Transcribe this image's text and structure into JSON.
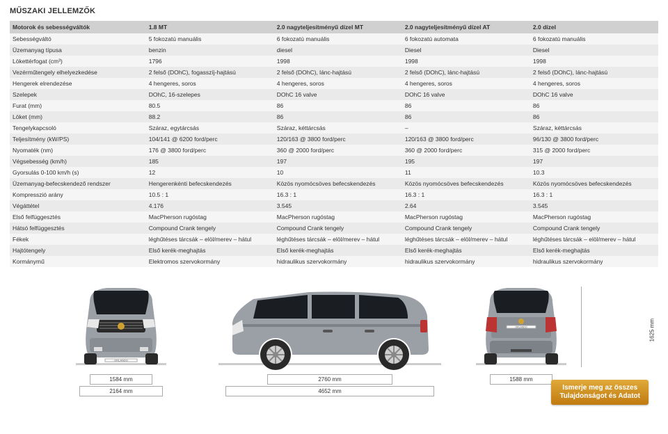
{
  "title": "MŰSZAKI JELLEMZŐK",
  "table": {
    "headers": [
      "Motorok és sebességváltók",
      "1.8 MT",
      "2.0 nagyteljesítményű dízel MT",
      "2.0 nagyteljesítményű dízel AT",
      "2.0 dízel"
    ],
    "rows": [
      [
        "Sebességváltó",
        "5 fokozatú manuális",
        "6 fokozatú manuális",
        "6 fokozatú automata",
        "6 fokozatú manuális"
      ],
      [
        "Üzemanyag típusa",
        "benzin",
        "diesel",
        "Diesel",
        "Diesel"
      ],
      [
        "Lökettérfogat (cm³)",
        "1796",
        "1998",
        "1998",
        "1998"
      ],
      [
        "Vezérműtengely elhelyezkedése",
        "2 felső (DOhC), fogasszíj-hajtású",
        "2 felső (DOhC), lánc-hajtású",
        "2 felső (DOhC), lánc-hajtású",
        "2 felső (DOhC), lánc-hajtású"
      ],
      [
        "Hengerek elrendezése",
        "4 hengeres, soros",
        "4 hengeres, soros",
        "4 hengeres, soros",
        "4 hengeres, soros"
      ],
      [
        "Szelepek",
        "DOhC, 16-szelepes",
        "DOhC 16 valve",
        "DOhC 16 valve",
        "DOhC 16 valve"
      ],
      [
        "Furat (mm)",
        "80.5",
        "86",
        "86",
        "86"
      ],
      [
        "Löket (mm)",
        "88.2",
        "86",
        "86",
        "86"
      ],
      [
        "Tengelykapcsoló",
        "Száraz, egytárcsás",
        "Száraz, kéttárcsás",
        "–",
        "Száraz, kéttárcsás"
      ],
      [
        "Teljesítmény (kW/PS)",
        "104/141 @ 6200 ford/perc",
        "120/163 @ 3800 ford/perc",
        "120/163 @ 3800 ford/perc",
        "96/130 @ 3800 ford/perc"
      ],
      [
        "Nyomaték (nm)",
        "176 @ 3800 ford/perc",
        "360 @ 2000 ford/perc",
        "360 @ 2000 ford/perc",
        "315 @ 2000 ford/perc"
      ],
      [
        "Végsebesség (km/h)",
        "185",
        "197",
        "195",
        "197"
      ],
      [
        "Gyorsulás 0-100 km/h (s)",
        "12",
        "10",
        "11",
        "10.3"
      ],
      [
        "Üzemanyag-befecskendező rendszer",
        "Hengerenkénti befecskendezés",
        "Közös nyomócsöves befecskendezés",
        "Közös nyomócsöves befecskendezés",
        "Közös nyomócsöves befecskendezés"
      ],
      [
        "Kompresszió arány",
        "10.5 : 1",
        "16.3 : 1",
        "16.3 : 1",
        "16.3 : 1"
      ],
      [
        "Végáttétel",
        "4.176",
        "3.545",
        "2.64",
        "3.545"
      ],
      [
        "Első felfüggesztés",
        "MacPherson rugóstag",
        "MacPherson rugóstag",
        "MacPherson rugóstag",
        "MacPherson rugóstag"
      ],
      [
        "Hátsó felfüggesztés",
        "Compound Crank tengely",
        "Compound Crank tengely",
        "Compound Crank tengely",
        "Compound Crank tengely"
      ],
      [
        "Fékek",
        "léghűtéses tárcsák – elöl/merev – hátul",
        "léghűtéses tárcsák – elöl/merev – hátul",
        "léghűtéses tárcsák – elöl/merev – hátul",
        "léghűtéses tárcsák – elöl/merev – hátul"
      ],
      [
        "Hajtótengely",
        "Első kerék-meghajtás",
        "Első kerék-meghajtás",
        "Első kerék-meghajtás",
        "Első kerék-meghajtás"
      ],
      [
        "Kormánymű",
        "Elektromos szervokormány",
        "hidraulikus szervokormány",
        "hidraulikus szervokormány",
        "hidraulikus szervokormány"
      ]
    ]
  },
  "dimensions": {
    "front_width": "1584 mm",
    "front_overall": "2164 mm",
    "side_wheelbase": "2760 mm",
    "side_length": "4652 mm",
    "rear_width": "1588 mm",
    "height": "1625 mm"
  },
  "cta": {
    "line1": "Ismerje meg az összes",
    "line2": "Tulajdonságot és Adatot"
  },
  "styling": {
    "body_color": "#9aa0a6",
    "glass_color": "#1a1d22",
    "tire_color": "#2a2a2a",
    "wheel_color": "#cfcfcf",
    "light_color": "#e8e8e8",
    "grille_color": "#2a2a2a",
    "badge_color": "#d0a030",
    "ground_color": "#cccccc"
  }
}
